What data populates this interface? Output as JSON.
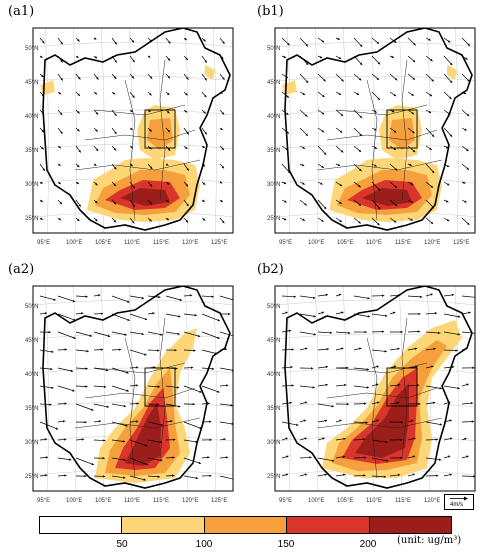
{
  "panels": [
    {
      "id": "a1",
      "label": "(a1)"
    },
    {
      "id": "b1",
      "label": "(b1)"
    },
    {
      "id": "a2",
      "label": "(a2)"
    },
    {
      "id": "b2",
      "label": "(b2)"
    }
  ],
  "axes": {
    "lat_labels": [
      "50°N",
      "45°N",
      "40°N",
      "35°N",
      "30°N",
      "25°N"
    ],
    "lon_labels": [
      "95°E",
      "100°E",
      "105°E",
      "110°E",
      "115°E",
      "120°E",
      "125°E"
    ]
  },
  "legend": {
    "ticks": [
      "50",
      "100",
      "150",
      "200"
    ],
    "unit": "(unit: ug/m³)",
    "colors": [
      "#ffffff",
      "#fdd677",
      "#f5a03c",
      "#d9352a",
      "#9c1e1a"
    ]
  },
  "reference_vector": {
    "label": "4m/s"
  }
}
